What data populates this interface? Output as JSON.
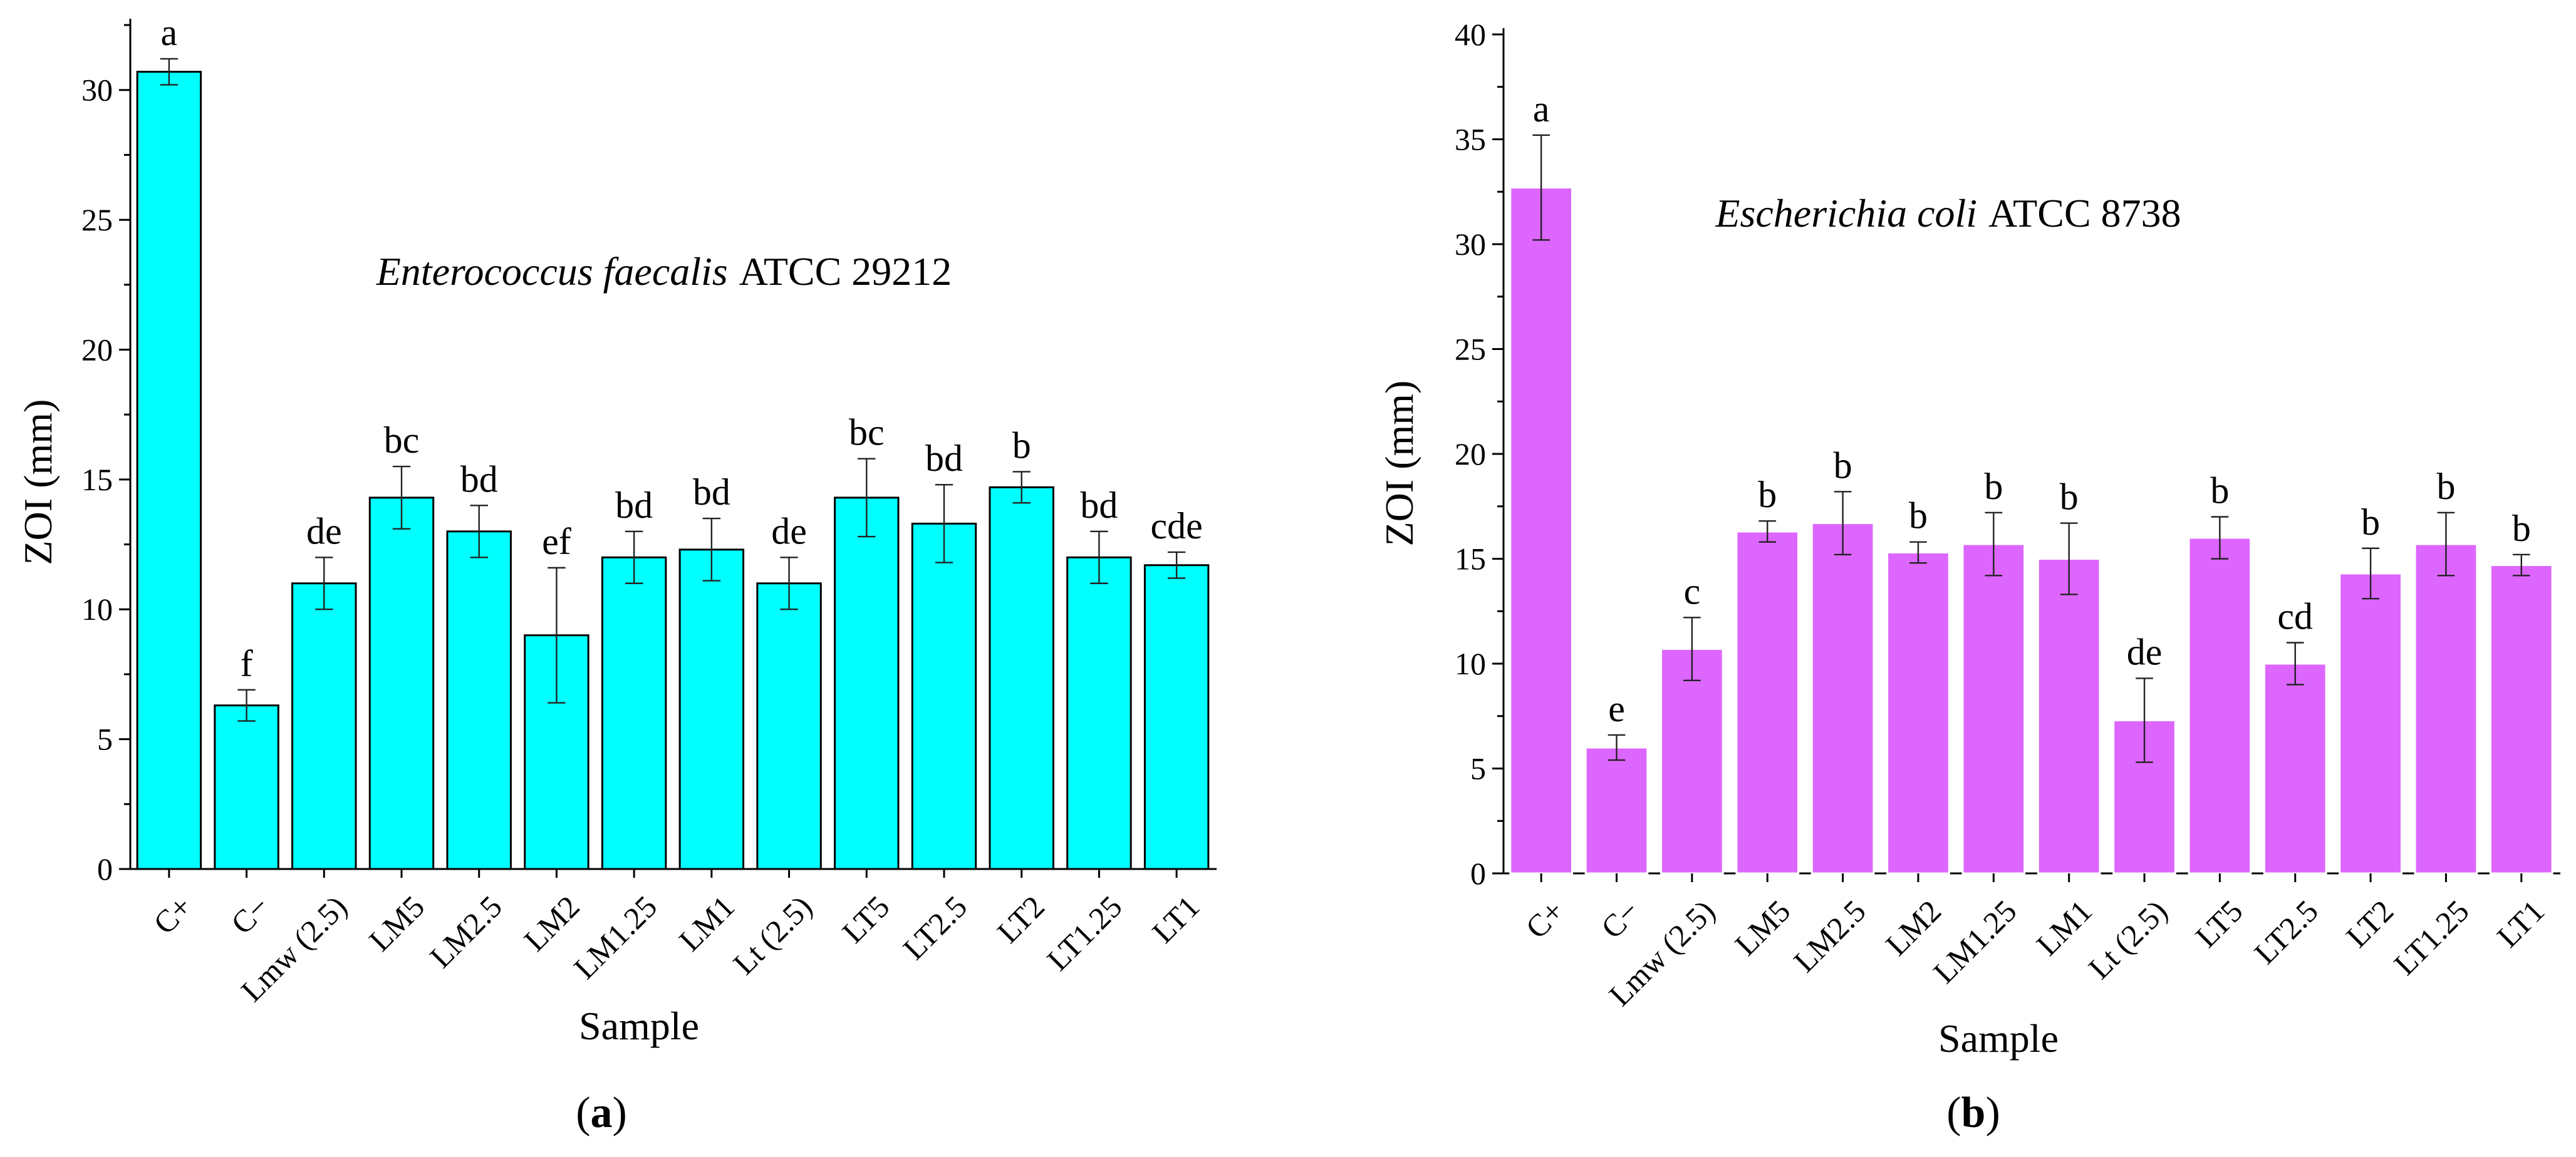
{
  "chart_data": [
    {
      "type": "bar",
      "panel_label": "a",
      "title_species": "Enterococcus faecalis",
      "title_strain": "ATCC 29212",
      "xlabel": "Sample",
      "ylabel": "ZOI (mm)",
      "ylim": [
        0,
        32.5
      ],
      "yticks": [
        0,
        5,
        10,
        15,
        20,
        25,
        30
      ],
      "bar_color": "#00ffff",
      "categories": [
        "C+",
        "C−",
        "Lmw (2.5)",
        "LM5",
        "LM2.5",
        "LM2",
        "LM1.25",
        "LM1",
        "Lt (2.5)",
        "LT5",
        "LT2.5",
        "LT2",
        "LT1.25",
        "LT1"
      ],
      "values": [
        30.7,
        6.3,
        11.0,
        14.3,
        13.0,
        9.0,
        12.0,
        12.3,
        11.0,
        14.3,
        13.3,
        14.7,
        12.0,
        11.7
      ],
      "errors": [
        0.5,
        0.6,
        1.0,
        1.2,
        1.0,
        2.6,
        1.0,
        1.2,
        1.0,
        1.5,
        1.5,
        0.6,
        1.0,
        0.5
      ],
      "significance": [
        "a",
        "f",
        "de",
        "bc",
        "bd",
        "ef",
        "bd",
        "bd",
        "de",
        "bc",
        "bd",
        "b",
        "bd",
        "cde"
      ]
    },
    {
      "type": "bar",
      "panel_label": "b",
      "title_species": "Escherichia coli",
      "title_strain": "ATCC 8738",
      "xlabel": "Sample",
      "ylabel": "ZOI (mm)",
      "ylim": [
        0,
        40
      ],
      "yticks": [
        0,
        5,
        10,
        15,
        20,
        25,
        30,
        35,
        40
      ],
      "bar_color": "#dd66ff",
      "categories": [
        "C+",
        "C−",
        "Lmw (2.5)",
        "LM5",
        "LM2.5",
        "LM2",
        "LM1.25",
        "LM1",
        "Lt (2.5)",
        "LT5",
        "LT2.5",
        "LT2",
        "LT1.25",
        "LT1"
      ],
      "values": [
        32.7,
        6.0,
        10.7,
        16.3,
        16.7,
        15.3,
        15.7,
        15.0,
        7.3,
        16.0,
        10.0,
        14.3,
        15.7,
        14.7
      ],
      "errors": [
        2.5,
        0.6,
        1.5,
        0.5,
        1.5,
        0.5,
        1.5,
        1.7,
        2.0,
        1.0,
        1.0,
        1.2,
        1.5,
        0.5
      ],
      "significance": [
        "a",
        "e",
        "c",
        "b",
        "b",
        "b",
        "b",
        "b",
        "de",
        "b",
        "cd",
        "b",
        "b",
        "b"
      ]
    }
  ]
}
